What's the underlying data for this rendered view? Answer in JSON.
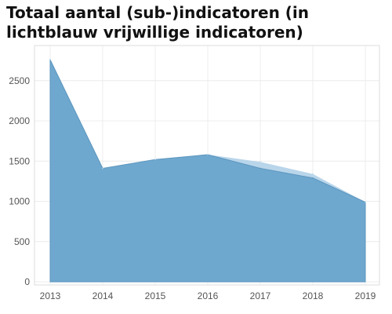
{
  "chart_data": {
    "type": "area",
    "title": "Totaal aantal (sub-)indicatoren (in lichtblauw vrijwillige indicatoren)",
    "xlabel": "",
    "ylabel": "",
    "x": [
      "2013",
      "2014",
      "2015",
      "2016",
      "2017",
      "2018",
      "2019"
    ],
    "ylim": [
      0,
      2800
    ],
    "yticks": [
      0,
      500,
      1000,
      1500,
      2000,
      2500
    ],
    "grid": true,
    "legend": "none",
    "series": [
      {
        "values": [
          2760,
          1410,
          1520,
          1580,
          1410,
          1290,
          990
        ],
        "color": "#6fa8cf"
      },
      {
        "values": [
          2760,
          1410,
          1520,
          1580,
          1490,
          1340,
          990
        ],
        "color": "#b8d5ea"
      }
    ],
    "colors": {
      "main_fill": "#6fa8cf",
      "main_stroke": "#5b95be",
      "voluntary_fill": "#b8d5ea"
    }
  }
}
